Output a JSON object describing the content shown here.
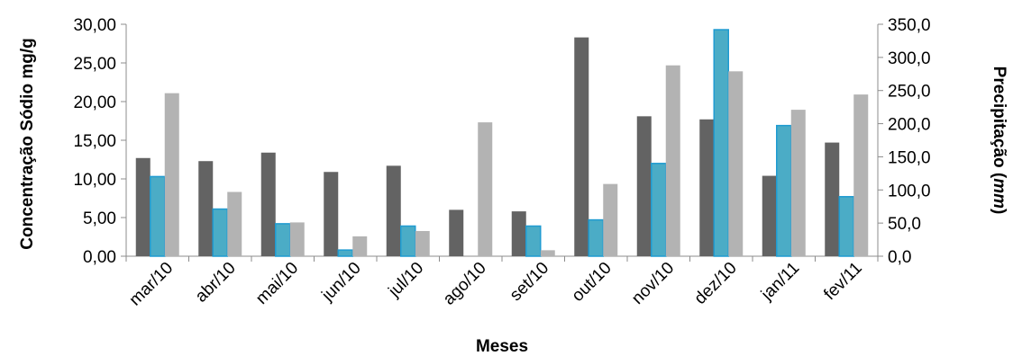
{
  "chart_data": {
    "type": "bar",
    "categories": [
      "mar/10",
      "abr/10",
      "mai/10",
      "jun/10",
      "jul/10",
      "ago/10",
      "set/10",
      "out/10",
      "nov/10",
      "dez/10",
      "jan/11",
      "fev/11"
    ],
    "series": [
      {
        "axis": "left",
        "color": "#636363",
        "values": [
          12.7,
          12.3,
          13.4,
          10.9,
          11.7,
          6.0,
          5.8,
          28.3,
          18.1,
          17.7,
          10.4,
          14.7
        ]
      },
      {
        "axis": "left",
        "color": "#4bacc6",
        "values": [
          10.3,
          6.1,
          4.2,
          0.8,
          3.9,
          0.0,
          3.9,
          4.7,
          12.0,
          29.3,
          16.9,
          7.7
        ]
      },
      {
        "axis": "right",
        "color": "#b3b3b3",
        "values": [
          246,
          97,
          51,
          30,
          38,
          202,
          9,
          109,
          288,
          279,
          221,
          244
        ]
      }
    ],
    "xlabel": "Meses",
    "ylabel": "Concentração Sódio mg/g",
    "y2label_prefix": "Precipitação (",
    "y2label_unit": "mm",
    "y2label_suffix": ")",
    "ylim": [
      0,
      30
    ],
    "y2lim": [
      0,
      350
    ],
    "yticks": [
      "0,00",
      "5,00",
      "10,00",
      "15,00",
      "20,00",
      "25,00",
      "30,00"
    ],
    "y2ticks": [
      "0,0",
      "50,0",
      "100,0",
      "150,0",
      "200,0",
      "250,0",
      "300,0",
      "350,0"
    ],
    "grid": false,
    "legend": "none"
  }
}
